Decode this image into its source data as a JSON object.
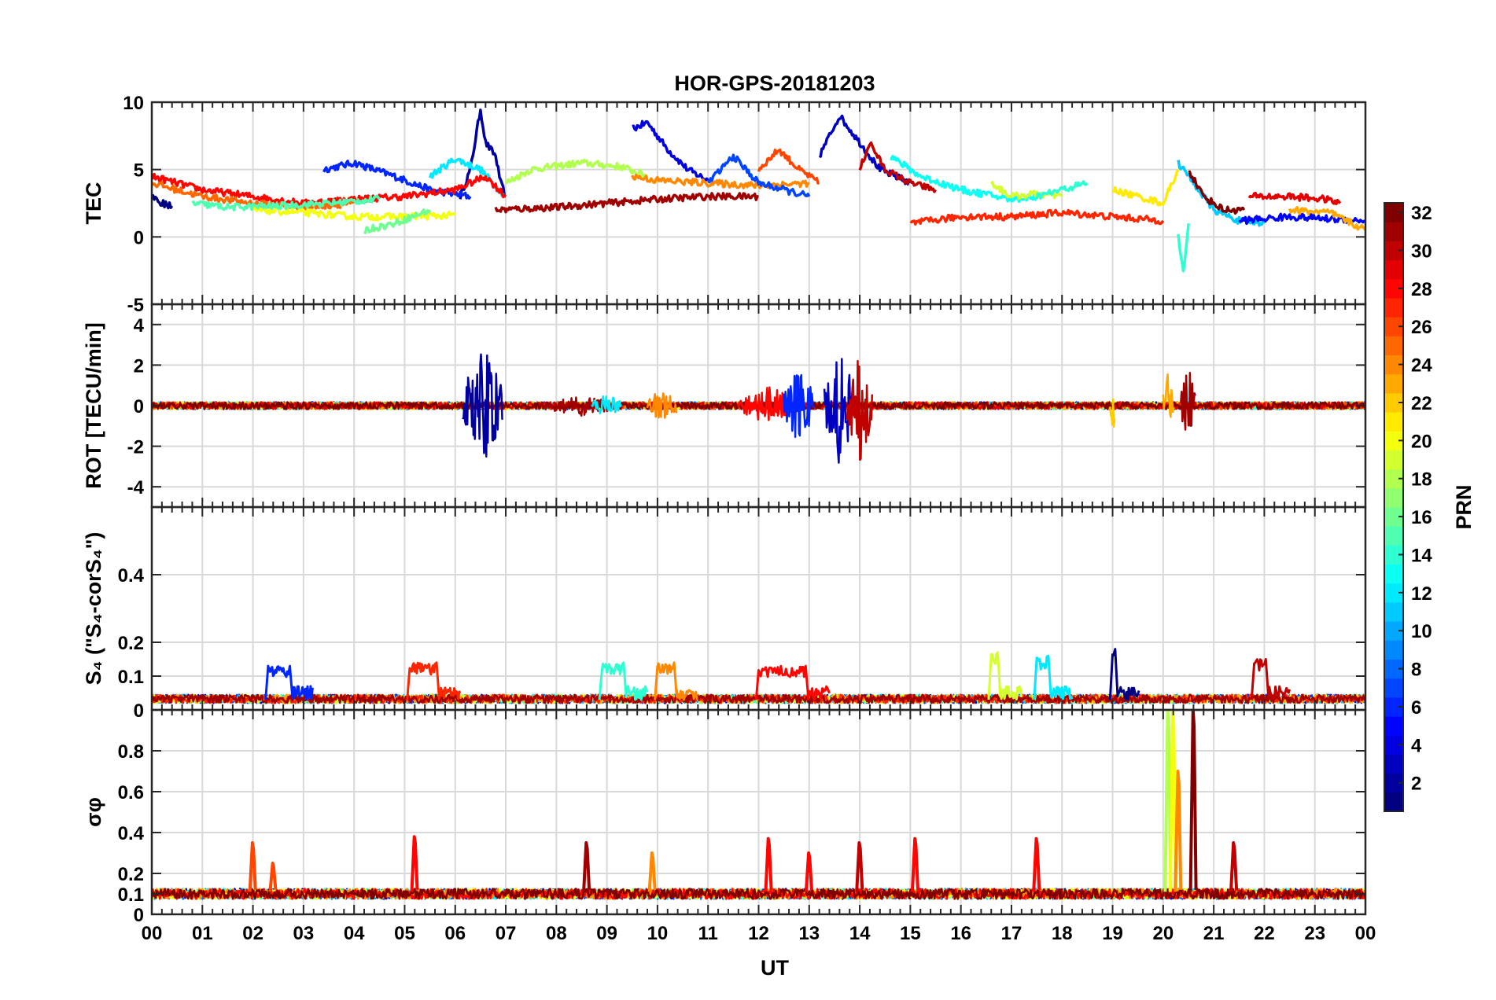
{
  "chart_data": {
    "type": "line",
    "title": "HOR-GPS-20181203",
    "xlabel": "UT",
    "x_ticks": [
      "00",
      "01",
      "02",
      "03",
      "04",
      "05",
      "06",
      "07",
      "08",
      "09",
      "10",
      "11",
      "12",
      "13",
      "14",
      "15",
      "16",
      "17",
      "18",
      "19",
      "20",
      "21",
      "22",
      "23",
      "00"
    ],
    "xlim": [
      0,
      24
    ],
    "grid": true,
    "panels": [
      {
        "id": "tec",
        "ylabel": "TEC",
        "ylim": [
          -5,
          10
        ],
        "y_ticks": [
          -5,
          0,
          5,
          10
        ],
        "series": [
          {
            "prn": 2,
            "points": [
              [
                6.1,
                3
              ],
              [
                6.3,
                5
              ],
              [
                6.5,
                9.5
              ],
              [
                6.6,
                7
              ],
              [
                6.8,
                6
              ],
              [
                6.9,
                4
              ],
              [
                7.0,
                3
              ]
            ]
          },
          {
            "prn": 4,
            "points": [
              [
                9.5,
                8
              ],
              [
                9.8,
                8.5
              ],
              [
                10.2,
                6.5
              ],
              [
                10.6,
                5
              ],
              [
                11.0,
                4.2
              ]
            ]
          },
          {
            "prn": 6,
            "points": [
              [
                3.4,
                5
              ],
              [
                4.0,
                5.5
              ],
              [
                4.8,
                4.5
              ],
              [
                5.5,
                3.5
              ],
              [
                6.3,
                3
              ]
            ]
          },
          {
            "prn": 12,
            "points": [
              [
                5.5,
                4.5
              ],
              [
                6.0,
                5.8
              ],
              [
                6.5,
                5
              ],
              [
                7.0,
                3
              ]
            ]
          },
          {
            "prn": 18,
            "points": [
              [
                7.0,
                4
              ],
              [
                7.5,
                5
              ],
              [
                8.5,
                5.5
              ],
              [
                9.3,
                5.2
              ],
              [
                9.8,
                4.5
              ]
            ]
          },
          {
            "prn": 26,
            "points": [
              [
                12.0,
                5
              ],
              [
                12.4,
                6.5
              ],
              [
                12.8,
                5
              ],
              [
                13.2,
                4
              ]
            ]
          },
          {
            "prn": 3,
            "points": [
              [
                13.2,
                6
              ],
              [
                13.6,
                9
              ],
              [
                14.0,
                7
              ],
              [
                14.4,
                5
              ],
              [
                15.0,
                4
              ]
            ]
          },
          {
            "prn": 30,
            "points": [
              [
                14.0,
                5
              ],
              [
                14.2,
                7
              ],
              [
                14.5,
                5
              ],
              [
                15.0,
                4
              ],
              [
                15.5,
                3.5
              ]
            ]
          },
          {
            "prn": 28,
            "points": [
              [
                0,
                4.5
              ],
              [
                1.0,
                3.5
              ],
              [
                2.0,
                3
              ],
              [
                3.0,
                2.5
              ],
              [
                4.0,
                2.8
              ],
              [
                5.0,
                3
              ],
              [
                6.0,
                3.5
              ],
              [
                6.6,
                4.5
              ],
              [
                7.0,
                3
              ]
            ]
          },
          {
            "prn": 25,
            "points": [
              [
                0,
                4
              ],
              [
                1.0,
                3
              ],
              [
                2.0,
                2.5
              ],
              [
                3.0,
                2.2
              ],
              [
                4.0,
                2.5
              ]
            ]
          },
          {
            "prn": 20,
            "points": [
              [
                2.0,
                2
              ],
              [
                3.0,
                1.8
              ],
              [
                4.0,
                1.5
              ],
              [
                5.0,
                1.5
              ],
              [
                6.0,
                1.6
              ]
            ]
          },
          {
            "prn": 15,
            "points": [
              [
                0.8,
                2.5
              ],
              [
                1.5,
                2.2
              ],
              [
                2.5,
                2.3
              ],
              [
                3.5,
                2.5
              ],
              [
                4.5,
                2.8
              ]
            ]
          },
          {
            "prn": 16,
            "points": [
              [
                4.2,
                0.5
              ],
              [
                4.8,
                1
              ],
              [
                5.5,
                2
              ]
            ]
          },
          {
            "prn": 31,
            "points": [
              [
                6.8,
                2
              ],
              [
                8.0,
                2.2
              ],
              [
                9.0,
                2.5
              ],
              [
                10.0,
                2.8
              ],
              [
                11.0,
                3
              ],
              [
                12.0,
                3
              ]
            ]
          },
          {
            "prn": 24,
            "points": [
              [
                9.5,
                4.5
              ],
              [
                10.0,
                4.2
              ],
              [
                11.0,
                4
              ],
              [
                12.0,
                3.8
              ],
              [
                13.0,
                4
              ]
            ]
          },
          {
            "prn": 7,
            "points": [
              [
                11.0,
                4
              ],
              [
                11.5,
                6
              ],
              [
                12.0,
                4
              ],
              [
                13.0,
                3
              ]
            ]
          },
          {
            "prn": 27,
            "points": [
              [
                15.0,
                1
              ],
              [
                16.0,
                1.5
              ],
              [
                17.0,
                1.5
              ],
              [
                18.0,
                1.8
              ],
              [
                19.0,
                1.5
              ],
              [
                20.0,
                1.2
              ]
            ]
          },
          {
            "prn": 13,
            "points": [
              [
                14.6,
                6
              ],
              [
                15.2,
                4.5
              ],
              [
                16.0,
                3.5
              ],
              [
                17.0,
                2.8
              ],
              [
                17.5,
                3
              ]
            ]
          },
          {
            "prn": 19,
            "points": [
              [
                16.6,
                4
              ],
              [
                17.0,
                3
              ],
              [
                17.5,
                3.2
              ],
              [
                18.0,
                3
              ]
            ]
          },
          {
            "prn": 14,
            "points": [
              [
                17.5,
                3
              ],
              [
                18.0,
                3.5
              ],
              [
                18.5,
                4
              ]
            ]
          },
          {
            "prn": 21,
            "points": [
              [
                19.0,
                3.5
              ],
              [
                19.5,
                3
              ],
              [
                20.0,
                2.5
              ],
              [
                20.3,
                5
              ]
            ]
          },
          {
            "prn": 11,
            "points": [
              [
                20.3,
                5.5
              ],
              [
                20.6,
                4
              ],
              [
                21.0,
                2
              ],
              [
                21.5,
                1.2
              ],
              [
                22.0,
                1
              ]
            ]
          },
          {
            "prn": 32,
            "points": [
              [
                20.5,
                5
              ],
              [
                20.8,
                3
              ],
              [
                21.2,
                2
              ],
              [
                21.6,
                2
              ]
            ]
          },
          {
            "prn": 29,
            "points": [
              [
                21.7,
                3
              ],
              [
                22.5,
                3
              ],
              [
                23.2,
                2.8
              ],
              [
                23.5,
                2.5
              ]
            ]
          },
          {
            "prn": 5,
            "points": [
              [
                21.5,
                1.2
              ],
              [
                22.5,
                1.5
              ],
              [
                23.5,
                1.3
              ],
              [
                24.0,
                1.2
              ]
            ]
          },
          {
            "prn": 23,
            "points": [
              [
                22.5,
                2
              ],
              [
                23.3,
                1.8
              ],
              [
                24.0,
                0.5
              ]
            ]
          },
          {
            "prn": 1,
            "points": [
              [
                0,
                3
              ],
              [
                0.2,
                2.5
              ],
              [
                0.4,
                2.3
              ]
            ]
          },
          {
            "prn": 14,
            "points": [
              [
                20.3,
                0
              ],
              [
                20.4,
                -2.5
              ],
              [
                20.5,
                1
              ]
            ]
          }
        ]
      },
      {
        "id": "rot",
        "ylabel": "ROT [TECU/min]",
        "ylim": [
          -5,
          5
        ],
        "y_ticks": [
          -4,
          -2,
          0,
          2,
          4
        ],
        "bursts": [
          {
            "prn": 2,
            "center": 6.55,
            "half_width": 0.4,
            "amp": 3.0
          },
          {
            "prn": 3,
            "center": 13.6,
            "half_width": 0.3,
            "amp": 3.0
          },
          {
            "prn": 30,
            "center": 14.0,
            "half_width": 0.25,
            "amp": 2.8
          },
          {
            "prn": 28,
            "center": 12.2,
            "half_width": 0.6,
            "amp": 1.0
          },
          {
            "prn": 6,
            "center": 12.8,
            "half_width": 0.3,
            "amp": 2.0
          },
          {
            "prn": 22,
            "center": 19.0,
            "half_width": 0.05,
            "amp": 2.0
          },
          {
            "prn": 23,
            "center": 20.1,
            "half_width": 0.1,
            "amp": 2.0
          },
          {
            "prn": 31,
            "center": 20.5,
            "half_width": 0.15,
            "amp": 2.0
          },
          {
            "prn": 24,
            "center": 10.1,
            "half_width": 0.3,
            "amp": 0.9
          },
          {
            "prn": 31,
            "center": 8.5,
            "half_width": 0.8,
            "amp": 0.5
          },
          {
            "prn": 12,
            "center": 9.0,
            "half_width": 0.3,
            "amp": 0.6
          }
        ]
      },
      {
        "id": "s4",
        "ylabel": "S₄ (\"S₄-corS₄\")",
        "ylim": [
          0,
          0.6
        ],
        "y_ticks": [
          0,
          0.1,
          0.2,
          0.4
        ],
        "peaks": [
          {
            "prn": 6,
            "x0": 2.3,
            "x1": 2.7,
            "value": 0.13
          },
          {
            "prn": 27,
            "x0": 5.1,
            "x1": 5.6,
            "value": 0.14
          },
          {
            "prn": 14,
            "x0": 8.9,
            "x1": 9.3,
            "value": 0.14
          },
          {
            "prn": 24,
            "x0": 10.0,
            "x1": 10.3,
            "value": 0.14
          },
          {
            "prn": 28,
            "x0": 12.0,
            "x1": 12.9,
            "value": 0.13
          },
          {
            "prn": 19,
            "x0": 16.6,
            "x1": 16.7,
            "value": 0.17
          },
          {
            "prn": 12,
            "x0": 17.5,
            "x1": 17.7,
            "value": 0.16
          },
          {
            "prn": 1,
            "x0": 19.0,
            "x1": 19.0,
            "value": 0.18
          },
          {
            "prn": 30,
            "x0": 21.8,
            "x1": 22.0,
            "value": 0.15
          }
        ]
      },
      {
        "id": "sigma_phi",
        "ylabel": "σφ",
        "ylim": [
          0,
          1
        ],
        "y_ticks": [
          0,
          0.1,
          0.2,
          0.4,
          0.6,
          0.8
        ],
        "spikes": [
          {
            "prn": 26,
            "x": 2.0,
            "value": 0.35
          },
          {
            "prn": 26,
            "x": 2.4,
            "value": 0.25
          },
          {
            "prn": 28,
            "x": 5.2,
            "value": 0.38
          },
          {
            "prn": 31,
            "x": 8.6,
            "value": 0.35
          },
          {
            "prn": 24,
            "x": 9.9,
            "value": 0.3
          },
          {
            "prn": 28,
            "x": 12.2,
            "value": 0.37
          },
          {
            "prn": 28,
            "x": 13.0,
            "value": 0.3
          },
          {
            "prn": 30,
            "x": 14.0,
            "value": 0.35
          },
          {
            "prn": 28,
            "x": 15.1,
            "value": 0.37
          },
          {
            "prn": 28,
            "x": 17.5,
            "value": 0.37
          },
          {
            "prn": 30,
            "x": 21.4,
            "value": 0.35
          },
          {
            "prn": 18,
            "x": 20.1,
            "value": 1.0
          },
          {
            "prn": 20,
            "x": 20.2,
            "value": 1.0
          },
          {
            "prn": 24,
            "x": 20.3,
            "value": 0.7
          },
          {
            "prn": 32,
            "x": 20.6,
            "value": 1.0
          }
        ]
      }
    ],
    "colorbar": {
      "label": "PRN",
      "range": [
        1,
        32
      ],
      "ticks": [
        2,
        4,
        6,
        8,
        10,
        12,
        14,
        16,
        18,
        20,
        22,
        24,
        26,
        28,
        30,
        32
      ],
      "colormap": "jet"
    }
  }
}
